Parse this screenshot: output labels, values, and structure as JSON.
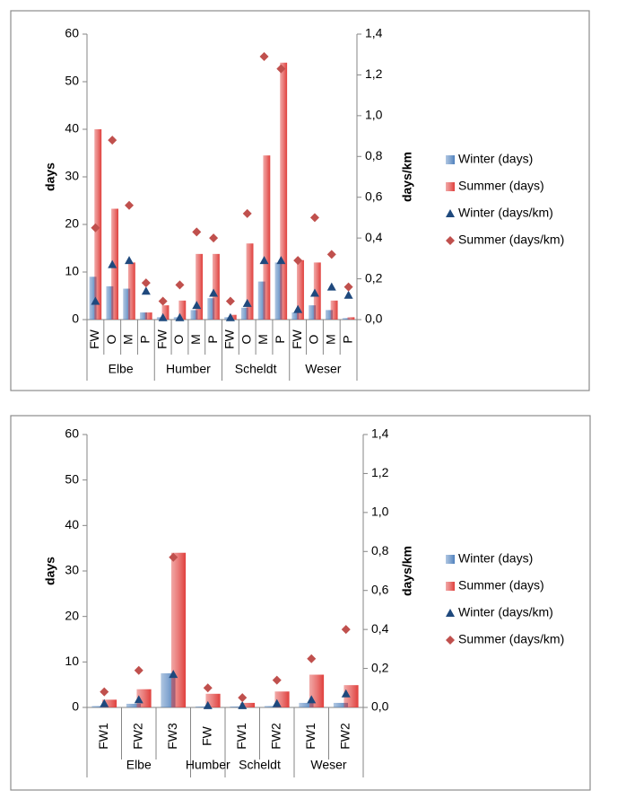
{
  "chart_data": [
    {
      "type": "bar",
      "groups": [
        {
          "label": "Elbe",
          "categories": [
            "FW",
            "O",
            "M",
            "P"
          ]
        },
        {
          "label": "Humber",
          "categories": [
            "FW",
            "O",
            "M",
            "P"
          ]
        },
        {
          "label": "Scheldt",
          "categories": [
            "FW",
            "O",
            "M",
            "P"
          ]
        },
        {
          "label": "Weser",
          "categories": [
            "FW",
            "O",
            "M",
            "P"
          ]
        }
      ],
      "ylabel": "days",
      "y2label": "days/km",
      "ylim": [
        0,
        60
      ],
      "yticks": [
        0,
        10,
        20,
        30,
        40,
        50,
        60
      ],
      "y2lim": [
        0,
        1.4
      ],
      "y2ticks": [
        {
          "value": 0,
          "label": "0,0"
        },
        {
          "value": 0.2,
          "label": "0,2"
        },
        {
          "value": 0.4,
          "label": "0,4"
        },
        {
          "value": 0.6,
          "label": "0,6"
        },
        {
          "value": 0.8,
          "label": "0,8"
        },
        {
          "value": 1.0,
          "label": "1,0"
        },
        {
          "value": 1.2,
          "label": "1,2"
        },
        {
          "value": 1.4,
          "label": "1,4"
        }
      ],
      "legend": "right",
      "series": [
        {
          "name": "Winter (days)",
          "type": "bar",
          "color": "#4f81bd",
          "values": [
            9,
            7,
            6.5,
            1.5,
            0.5,
            0.5,
            2,
            4.5,
            0.5,
            2.5,
            8,
            12,
            1.5,
            3,
            2,
            0.3
          ]
        },
        {
          "name": "Summer (days)",
          "type": "bar",
          "color": "#e0403d",
          "values": [
            40,
            23.3,
            12,
            1.5,
            3,
            4,
            13.8,
            13.8,
            1,
            16,
            34.5,
            54,
            12.5,
            12,
            4,
            0.5
          ]
        },
        {
          "name": "Winter (days/km)",
          "type": "scatter",
          "marker": "triangle",
          "axis": "y2",
          "color": "#1f497d",
          "values": [
            0.09,
            0.27,
            0.29,
            0.14,
            0.01,
            0.01,
            0.07,
            0.13,
            0.01,
            0.08,
            0.29,
            0.29,
            0.05,
            0.13,
            0.16,
            0.12
          ]
        },
        {
          "name": "Summer (days/km)",
          "type": "scatter",
          "marker": "diamond",
          "axis": "y2",
          "color": "#c0504d",
          "values": [
            0.45,
            0.88,
            0.56,
            0.18,
            0.09,
            0.17,
            0.43,
            0.4,
            0.09,
            0.52,
            1.29,
            1.23,
            0.29,
            0.5,
            0.32,
            0.16
          ]
        }
      ]
    },
    {
      "type": "bar",
      "groups": [
        {
          "label": "Elbe",
          "categories": [
            "FW1",
            "FW2",
            "FW3"
          ]
        },
        {
          "label": "Humber",
          "categories": [
            "FW"
          ]
        },
        {
          "label": "Scheldt",
          "categories": [
            "FW1",
            "FW2"
          ]
        },
        {
          "label": "Weser",
          "categories": [
            "FW1",
            "FW2"
          ]
        }
      ],
      "ylabel": "days",
      "y2label": "days/km",
      "ylim": [
        0,
        60
      ],
      "yticks": [
        0,
        10,
        20,
        30,
        40,
        50,
        60
      ],
      "y2lim": [
        0,
        1.4
      ],
      "y2ticks": [
        {
          "value": 0,
          "label": "0,0"
        },
        {
          "value": 0.2,
          "label": "0,2"
        },
        {
          "value": 0.4,
          "label": "0,4"
        },
        {
          "value": 0.6,
          "label": "0,6"
        },
        {
          "value": 0.8,
          "label": "0,8"
        },
        {
          "value": 1.0,
          "label": "1,0"
        },
        {
          "value": 1.2,
          "label": "1,2"
        },
        {
          "value": 1.4,
          "label": "1,4"
        }
      ],
      "legend": "right",
      "series": [
        {
          "name": "Winter (days)",
          "type": "bar",
          "color": "#4f81bd",
          "values": [
            0.3,
            0.8,
            7.5,
            0.2,
            0.2,
            0.3,
            1,
            1
          ]
        },
        {
          "name": "Summer (days)",
          "type": "bar",
          "color": "#e0403d",
          "values": [
            1.7,
            4,
            34,
            3,
            1,
            3.5,
            7.2,
            4.9
          ]
        },
        {
          "name": "Winter (days/km)",
          "type": "scatter",
          "marker": "triangle",
          "axis": "y2",
          "color": "#1f497d",
          "values": [
            0.02,
            0.04,
            0.17,
            0.01,
            0.01,
            0.02,
            0.04,
            0.07
          ]
        },
        {
          "name": "Summer (days/km)",
          "type": "scatter",
          "marker": "diamond",
          "axis": "y2",
          "color": "#c0504d",
          "values": [
            0.08,
            0.19,
            0.77,
            0.1,
            0.05,
            0.14,
            0.25,
            0.4
          ]
        }
      ]
    }
  ]
}
